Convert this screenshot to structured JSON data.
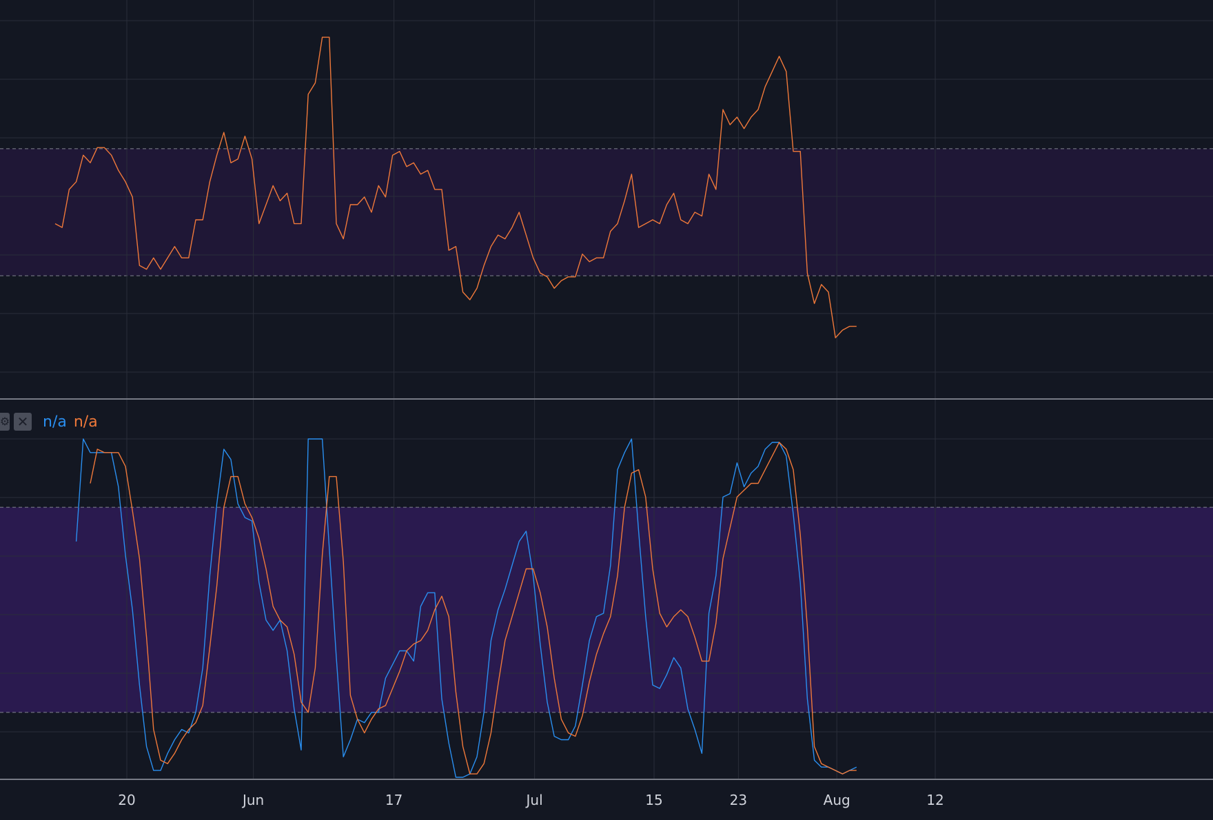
{
  "chart_data": [
    {
      "type": "line",
      "series": [
        {
          "color": "#f0793a",
          "values": [
            47,
            46,
            56,
            58,
            65,
            63,
            67,
            67,
            65,
            61,
            58,
            54,
            36,
            35,
            38,
            35,
            38,
            41,
            38,
            38,
            48,
            48,
            58,
            65,
            71,
            63,
            64,
            70,
            64,
            47,
            52,
            57,
            53,
            55,
            47,
            47,
            81,
            84,
            96,
            96,
            47,
            43,
            52,
            52,
            54,
            50,
            57,
            54,
            65,
            66,
            62,
            63,
            60,
            61,
            56,
            56,
            40,
            41,
            29,
            27,
            30,
            36,
            41,
            44,
            43,
            46,
            50,
            44,
            38,
            34,
            33,
            30,
            32,
            33,
            33,
            39,
            37,
            38,
            38,
            45,
            47,
            53,
            60,
            46,
            47,
            48,
            47,
            52,
            55,
            48,
            47,
            50,
            49,
            60,
            56,
            77,
            73,
            75,
            72,
            75,
            77,
            83,
            87,
            91,
            87,
            66,
            66,
            34,
            26,
            31,
            29,
            17,
            19,
            20,
            20
          ]
        }
      ],
      "ylim": [
        0,
        100
      ],
      "bands": [
        33.3,
        66.7
      ]
    },
    {
      "type": "line",
      "legend": [
        {
          "label": "n/a",
          "color": "#2a8ff0"
        },
        {
          "label": "n/a",
          "color": "#f0793a"
        }
      ],
      "series": [
        {
          "color": "#2a8ff0",
          "values": [
            null,
            null,
            null,
            70,
            100,
            96,
            96,
            96,
            96,
            86,
            66,
            50,
            28,
            10,
            3,
            3,
            8,
            12,
            15,
            14,
            20,
            33,
            60,
            81,
            97,
            94,
            81,
            77,
            76,
            58,
            47,
            44,
            47,
            38,
            21,
            9,
            100,
            100,
            100,
            68,
            36,
            7,
            12,
            18,
            17,
            20,
            20,
            30,
            34,
            38,
            38,
            35,
            51,
            55,
            55,
            24,
            11,
            1,
            1,
            2,
            7,
            20,
            41,
            50,
            56,
            63,
            70,
            73,
            60,
            40,
            23,
            13,
            12,
            12,
            16,
            28,
            41,
            48,
            49,
            63,
            91,
            96,
            100,
            73,
            48,
            28,
            27,
            31,
            36,
            33,
            21,
            15,
            8,
            49,
            60,
            83,
            84,
            93,
            86,
            90,
            92,
            97,
            99,
            99,
            95,
            78,
            58,
            24,
            6,
            4,
            4,
            3,
            2,
            3,
            4
          ]
        },
        {
          "color": "#f0793a",
          "values": [
            null,
            null,
            null,
            null,
            null,
            87,
            97,
            96,
            96,
            96,
            92,
            79,
            65,
            42,
            15,
            6,
            5,
            8,
            12,
            15,
            17,
            22,
            39,
            57,
            80,
            89,
            89,
            81,
            77,
            71,
            62,
            51,
            47,
            45,
            37,
            23,
            20,
            33,
            66,
            89,
            89,
            64,
            25,
            18,
            14,
            18,
            21,
            22,
            27,
            32,
            38,
            40,
            41,
            44,
            50,
            54,
            48,
            26,
            10,
            2,
            2,
            5,
            14,
            28,
            41,
            48,
            55,
            62,
            62,
            55,
            45,
            30,
            18,
            14,
            13,
            19,
            29,
            37,
            43,
            48,
            60,
            80,
            90,
            91,
            83,
            62,
            49,
            45,
            48,
            50,
            48,
            42,
            35,
            35,
            46,
            65,
            74,
            83,
            85,
            87,
            87,
            91,
            95,
            99,
            97,
            91,
            72,
            45,
            10,
            5,
            4,
            3,
            2,
            3,
            3
          ]
        }
      ],
      "ylim": [
        0,
        100
      ],
      "bands": [
        20,
        80
      ]
    }
  ],
  "x_axis": {
    "ticks": [
      {
        "label": "20",
        "index": 10
      },
      {
        "label": "Jun",
        "index": 28
      },
      {
        "label": "17",
        "index": 48
      },
      {
        "label": "Jul",
        "index": 68
      },
      {
        "label": "15",
        "index": 85
      },
      {
        "label": "23",
        "index": 97
      },
      {
        "label": "Aug",
        "index": 111
      },
      {
        "label": "12",
        "index": 125
      }
    ]
  },
  "legend_buttons": {
    "gear": "gear-icon",
    "close": "close-icon",
    "close_glyph": "✕",
    "gear_glyph": "⚙"
  },
  "colors": {
    "background": "#131722",
    "grid": "#2a2e39",
    "band_top": "#1f1736",
    "band_bottom": "#2a1a4f",
    "band_line": "#9598a1",
    "separator": "#787b86",
    "axis_text": "#d1d4dc"
  }
}
